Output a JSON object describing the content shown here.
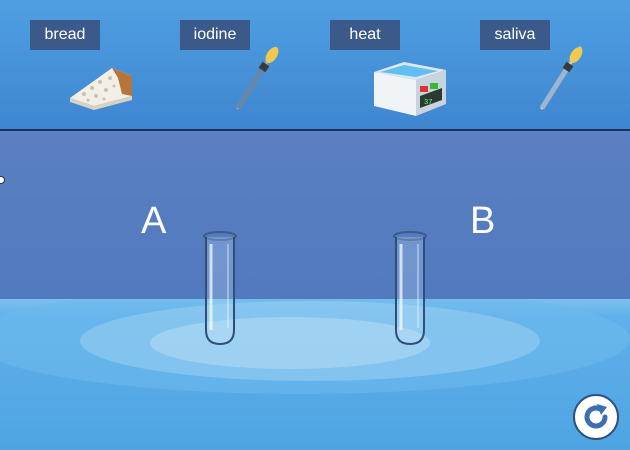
{
  "toolbar": {
    "items": [
      {
        "label": "bread",
        "icon": "bread-icon"
      },
      {
        "label": "iodine",
        "icon": "dropper-icon"
      },
      {
        "label": "heat",
        "icon": "water-bath-icon"
      },
      {
        "label": "saliva",
        "icon": "dropper-icon"
      }
    ]
  },
  "bench": {
    "tubes": [
      {
        "label": "A"
      },
      {
        "label": "B"
      }
    ]
  },
  "controls": {
    "reset_icon": "reset-icon"
  },
  "colors": {
    "toolbar_bg": "#4a93d9",
    "label_bg": "#3b5a8a",
    "lab_bg": "#5a80c3",
    "table": "#5fb0ea",
    "reset_arrow": "#3b6fb0"
  }
}
